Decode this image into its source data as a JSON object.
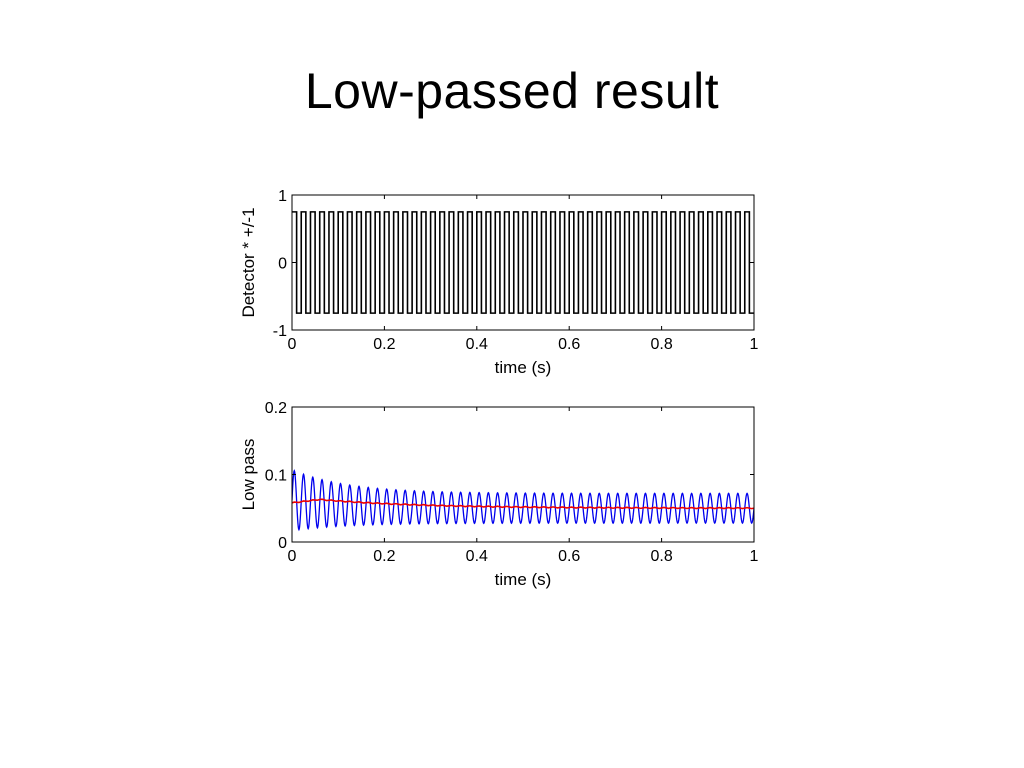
{
  "slide": {
    "title": "Low-passed result"
  },
  "colors": {
    "detector": "#000000",
    "lowpass_raw": "#0000ee",
    "lowpass_smooth": "#ee0000",
    "axes": "#000000"
  },
  "chart_data": [
    {
      "type": "line",
      "xlabel": "time (s)",
      "ylabel": "Detector * +/-1",
      "xlim": [
        0,
        1
      ],
      "ylim": [
        -1,
        1
      ],
      "xticks": [
        0,
        0.2,
        0.4,
        0.6,
        0.8,
        1
      ],
      "xtick_labels": [
        "0",
        "0.2",
        "0.4",
        "0.6",
        "0.8",
        "1"
      ],
      "yticks": [
        -1,
        0,
        1
      ],
      "ytick_labels": [
        "-1",
        "0",
        "1"
      ],
      "grid": false,
      "series": [
        {
          "kind": "square-wave",
          "amplitude": 0.75,
          "cycles": 50,
          "color": "#000000"
        }
      ]
    },
    {
      "type": "line",
      "xlabel": "time (s)",
      "ylabel": "Low pass",
      "xlim": [
        0,
        1
      ],
      "ylim": [
        0,
        0.2
      ],
      "xticks": [
        0,
        0.2,
        0.4,
        0.6,
        0.8,
        1
      ],
      "xtick_labels": [
        "0",
        "0.2",
        "0.4",
        "0.6",
        "0.8",
        "1"
      ],
      "yticks": [
        0,
        0.1,
        0.2
      ],
      "ytick_labels": [
        "0",
        "0.1",
        "0.2"
      ],
      "grid": false,
      "series": [
        {
          "kind": "oscillation",
          "mean_start": 0.062,
          "mean_end": 0.05,
          "amp_start": 0.045,
          "amp_end": 0.022,
          "cycles": 50,
          "color": "#0000ee"
        },
        {
          "kind": "smooth",
          "start": 0.058,
          "peak": 0.063,
          "end": 0.05,
          "color": "#ee0000"
        }
      ]
    }
  ]
}
